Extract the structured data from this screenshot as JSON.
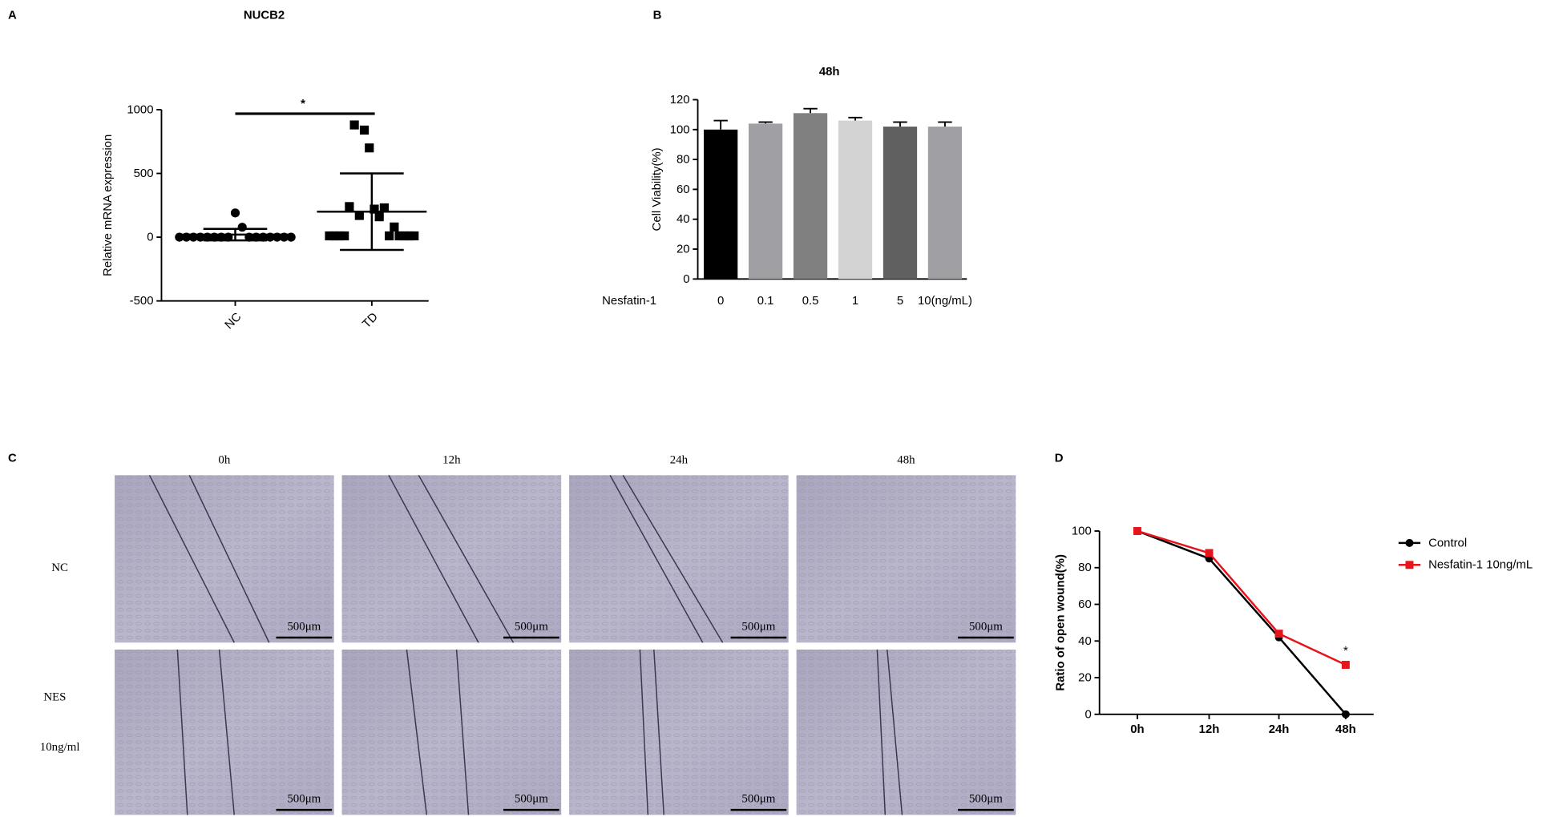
{
  "chart_data": [
    {
      "type": "dot-plot",
      "panel": "A",
      "title": "NUCB2",
      "ylabel": "Relative mRNA expression",
      "categories": [
        "NC",
        "TD"
      ],
      "points": [
        [
          0,
          0,
          0,
          0,
          0,
          0,
          0,
          0,
          190,
          78,
          0,
          0,
          0,
          0,
          0,
          0,
          0
        ],
        [
          10,
          10,
          10,
          10,
          240,
          880,
          170,
          840,
          700,
          220,
          160,
          230,
          10,
          80,
          10,
          10,
          10,
          10
        ]
      ],
      "means": [
        20,
        200
      ],
      "sd": [
        45,
        300
      ],
      "ylim": [
        -500,
        1000
      ],
      "yticks": [
        -500,
        0,
        500,
        1000
      ],
      "significance": "*",
      "color": "#000000"
    },
    {
      "type": "bar",
      "panel": "B",
      "title": "48h",
      "ylabel": "Cell Viability(%)",
      "xlabel": "Nesfatin-1",
      "categories": [
        "0",
        "0.1",
        "0.5",
        "1",
        "5",
        "10(ng/mL)"
      ],
      "values": [
        100,
        104,
        111,
        106,
        102,
        102
      ],
      "errors": [
        6,
        1,
        3,
        2,
        3,
        3
      ],
      "colors": [
        "#000000",
        "#a0a0a4",
        "#808080",
        "#d3d3d3",
        "#606060",
        "#a0a0a4"
      ],
      "ylim": [
        0,
        120
      ],
      "yticks": [
        0,
        20,
        40,
        60,
        80,
        100,
        120
      ]
    },
    {
      "type": "line",
      "panel": "D",
      "ylabel": "Ratio of open wound(%)",
      "categories": [
        "0h",
        "12h",
        "24h",
        "48h"
      ],
      "series": [
        {
          "name": "Control",
          "color": "#000000",
          "values": [
            100,
            85,
            42,
            0
          ]
        },
        {
          "name": "Nesfatin-1 10ng/mL",
          "color": "#e8141b",
          "values": [
            100,
            88,
            44,
            27
          ]
        }
      ],
      "ylim": [
        0,
        100
      ],
      "yticks": [
        0,
        20,
        40,
        60,
        80,
        100
      ],
      "annotation": "*",
      "legend": "right"
    }
  ],
  "micrographs": {
    "panel": "C",
    "columns": [
      "0h",
      "12h",
      "24h",
      "48h"
    ],
    "rows": [
      {
        "labels": [
          "NC"
        ]
      },
      {
        "labels": [
          "NES",
          "10ng/ml"
        ]
      }
    ],
    "scale_bar": "500μm"
  }
}
